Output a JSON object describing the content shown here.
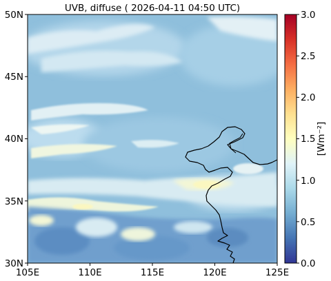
{
  "title": "UVB, diffuse ( 2026-04-11 04:50 UTC)",
  "map": {
    "lon_ticks": [
      "105E",
      "110E",
      "115E",
      "120E",
      "125E"
    ],
    "lat_ticks": [
      "50N",
      "45N",
      "40N",
      "35N",
      "30N"
    ],
    "extent": {
      "lon": [
        105,
        125
      ],
      "lat": [
        30,
        50
      ]
    }
  },
  "colorbar": {
    "label": "[Wm⁻²]",
    "ticks": [
      "3.0",
      "2.5",
      "2.0",
      "1.5",
      "1.0",
      "0.5",
      "0.0"
    ],
    "range": [
      0.0,
      3.0
    ],
    "colormap": "RdYlBu_r",
    "colors": [
      "#313695",
      "#4575b4",
      "#74add1",
      "#abd9e9",
      "#e0f3f8",
      "#ffffbf",
      "#fee090",
      "#fdae61",
      "#f46d43",
      "#d73027",
      "#a50026"
    ]
  },
  "colors": {
    "field_base": "#8fbfdc",
    "field_light": "#b9dcee",
    "field_pale": "#e6f2f4",
    "field_warm": "#fbf7c0",
    "field_dark": "#5b8cc0",
    "coastline": "#000000"
  }
}
